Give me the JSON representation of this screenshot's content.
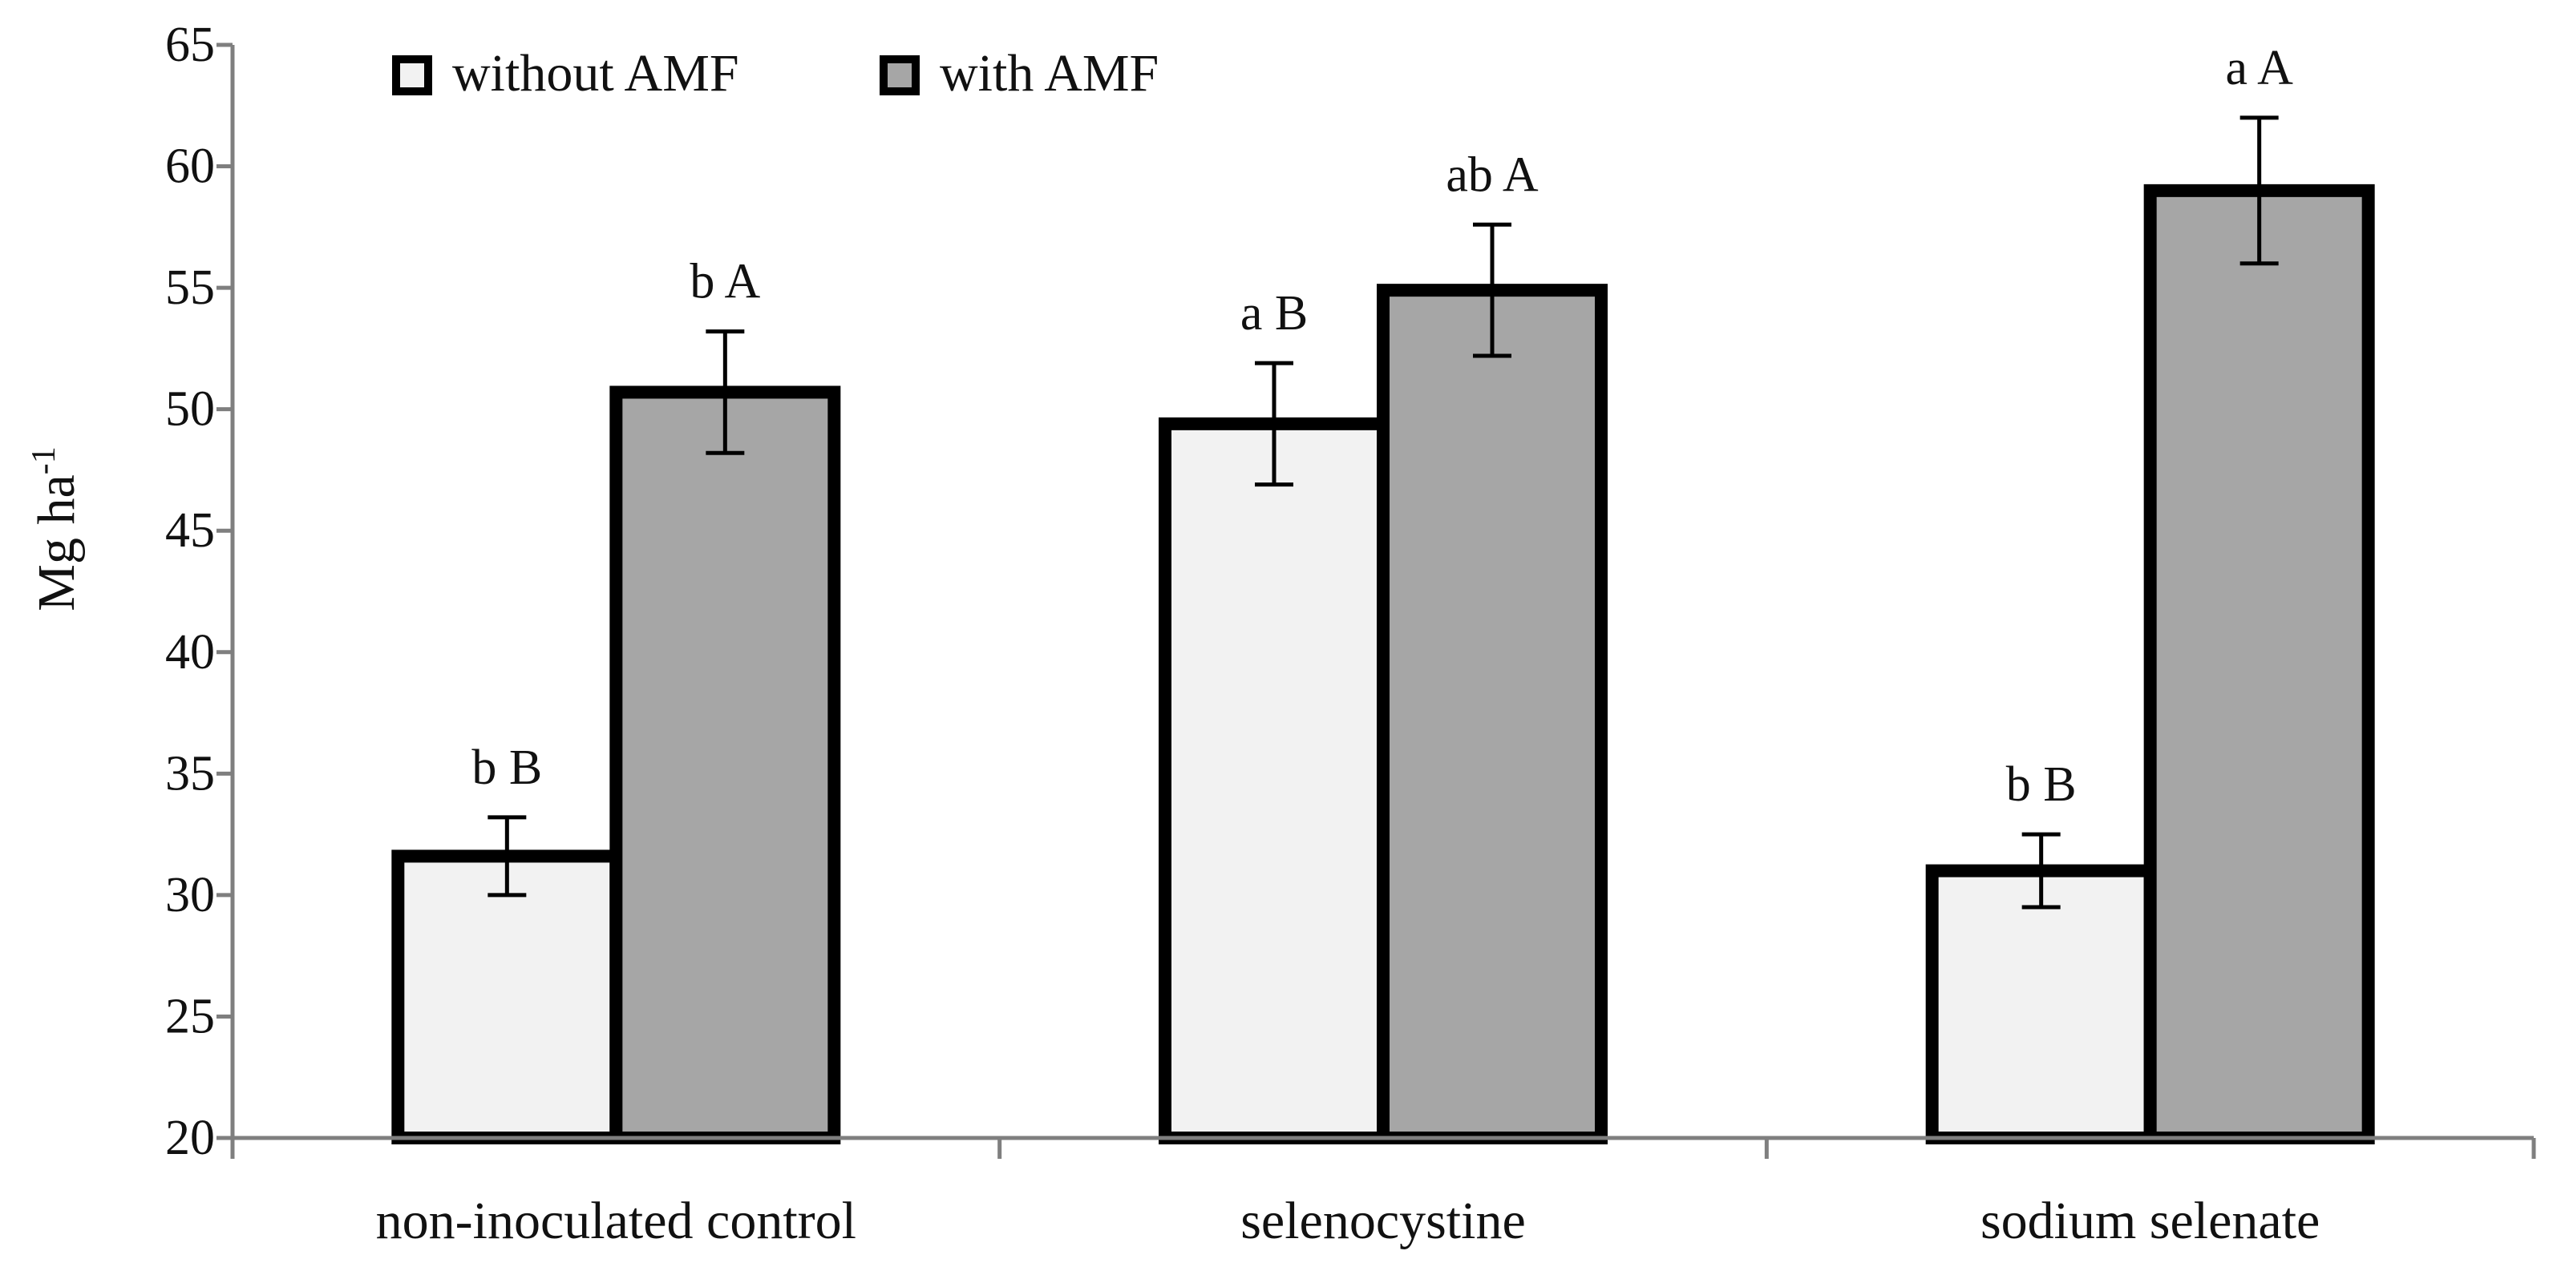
{
  "chart_data": {
    "type": "bar",
    "title": "",
    "xlabel": "",
    "ylabel": "Mg ha",
    "ylabel_superscript": "-1",
    "ylim": [
      20,
      65
    ],
    "yticks": [
      20,
      25,
      30,
      35,
      40,
      45,
      50,
      55,
      60,
      65
    ],
    "grid": false,
    "legend_position": "top-left",
    "categories": [
      "non-inoculated control",
      "selenocystine",
      "sodium selenate"
    ],
    "series": [
      {
        "name": "without AMF",
        "color": "#f2f2f2",
        "values": [
          31.6,
          49.4,
          31.0
        ],
        "errors": [
          1.6,
          2.5,
          1.5
        ],
        "labels": [
          "b  B",
          "a  B",
          "b  B"
        ]
      },
      {
        "name": "with AMF",
        "color": "#a6a6a6",
        "values": [
          50.7,
          54.9,
          59.0
        ],
        "errors": [
          2.5,
          2.7,
          3.0
        ],
        "labels": [
          "b  A",
          "ab  A",
          "a  A"
        ]
      }
    ]
  }
}
